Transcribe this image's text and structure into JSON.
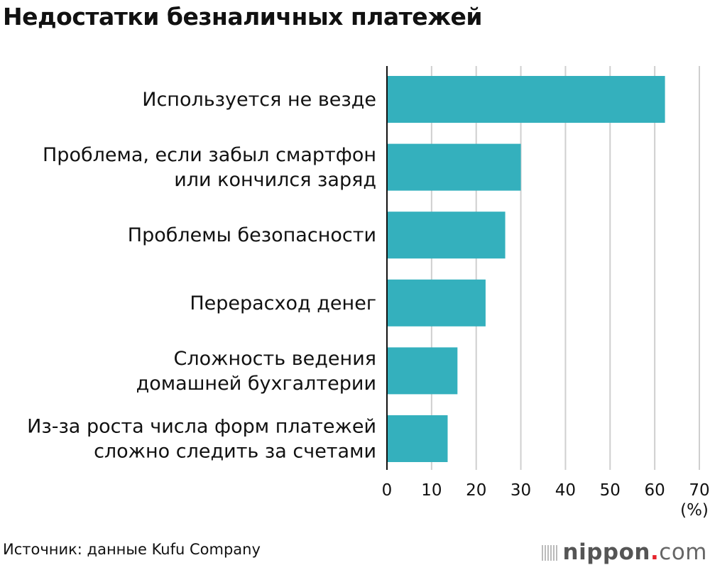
{
  "chart_data": {
    "type": "bar",
    "orientation": "horizontal",
    "title": "Недостатки безналичных платежей",
    "categories": [
      [
        "Используется не везде"
      ],
      [
        "Проблема, если забыл смартфон",
        "или кончился заряд"
      ],
      [
        "Проблемы безопасности"
      ],
      [
        "Перерасход денег"
      ],
      [
        "Сложность ведения",
        "домашней бухгалтерии"
      ],
      [
        "Из-за роста числа форм платежей",
        "сложно следить за счетами"
      ]
    ],
    "values": [
      62.3,
      30.0,
      26.5,
      22.1,
      15.8,
      13.6
    ],
    "xlim": [
      0,
      70
    ],
    "xticks": [
      0,
      10,
      20,
      30,
      40,
      50,
      60,
      70
    ],
    "xlabel": "(%)",
    "grid": true,
    "bar_color": "#34b0bd"
  },
  "source": "Источник: данные Kufu Company",
  "logo": {
    "name": "nippon",
    "dot": ".",
    "tld": "com"
  }
}
